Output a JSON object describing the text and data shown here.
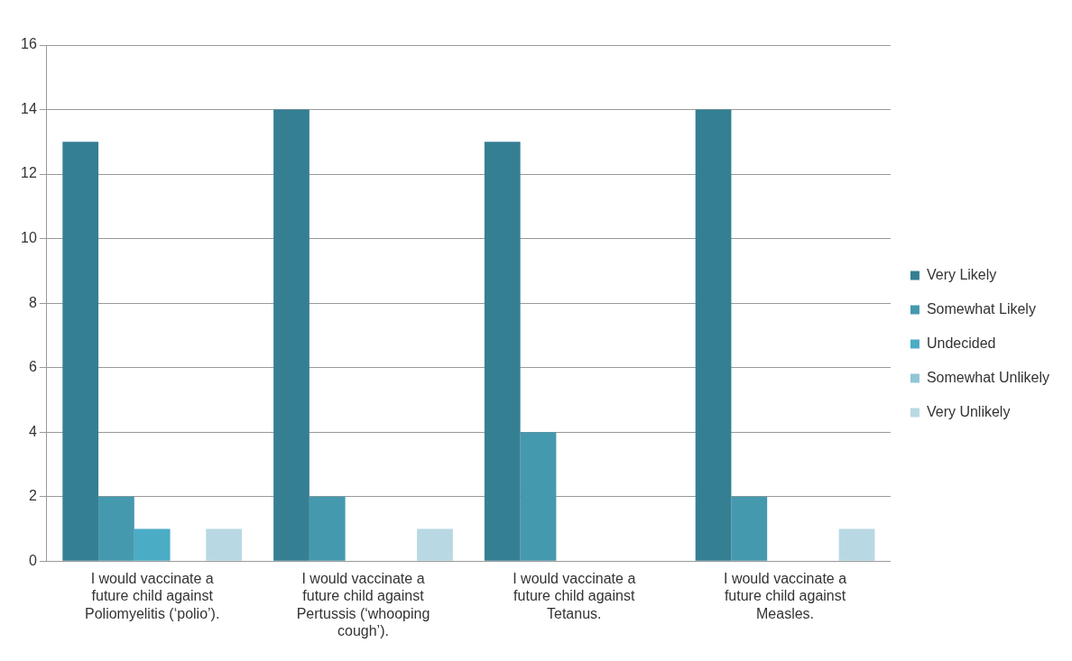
{
  "chart_data": {
    "type": "bar",
    "categories": [
      "I would vaccinate a future child against Poliomyelitis (‘polio’).",
      "I would vaccinate a future child against Pertussis (‘whooping cough’).",
      "I would vaccinate a future child against Tetanus.",
      "I would vaccinate a future child against Measles."
    ],
    "series": [
      {
        "name": "Very Likely",
        "color": "#357f93",
        "values": [
          13,
          14,
          13,
          14
        ]
      },
      {
        "name": "Somewhat Likely",
        "color": "#4599ae",
        "values": [
          2,
          2,
          4,
          2
        ]
      },
      {
        "name": "Undecided",
        "color": "#4bacc6",
        "values": [
          1,
          0,
          0,
          0
        ]
      },
      {
        "name": "Somewhat Unlikely",
        "color": "#8fc6d6",
        "values": [
          0,
          0,
          0,
          0
        ]
      },
      {
        "name": "Very Unlikely",
        "color": "#b8d8e3",
        "values": [
          1,
          1,
          0,
          1
        ]
      }
    ],
    "ylim": [
      0,
      16
    ],
    "yticks": [
      0,
      2,
      4,
      6,
      8,
      10,
      12,
      14,
      16
    ],
    "grid": "y",
    "legend": "right"
  }
}
